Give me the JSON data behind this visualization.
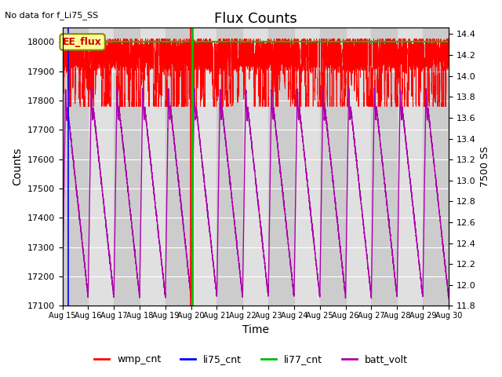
{
  "title": "Flux Counts",
  "top_left_text": "No data for f_Li75_SS",
  "annotation_text": "EE_flux",
  "xlabel": "Time",
  "ylabel_left": "Counts",
  "ylabel_right": "7500 SS",
  "ylim_left": [
    17100,
    18050
  ],
  "ylim_right": [
    11.8,
    14.467
  ],
  "xlim": [
    0,
    15
  ],
  "xtick_labels": [
    "Aug 15",
    "Aug 16",
    "Aug 17",
    "Aug 18",
    "Aug 19",
    "Aug 20",
    "Aug 21",
    "Aug 22",
    "Aug 23",
    "Aug 24",
    "Aug 25",
    "Aug 26",
    "Aug 27",
    "Aug 28",
    "Aug 29",
    "Aug 30"
  ],
  "xtick_positions": [
    0,
    1,
    2,
    3,
    4,
    5,
    6,
    7,
    8,
    9,
    10,
    11,
    12,
    13,
    14,
    15
  ],
  "yticks_left": [
    17100,
    17200,
    17300,
    17400,
    17500,
    17600,
    17700,
    17800,
    17900,
    18000
  ],
  "yticks_right": [
    11.8,
    12.0,
    12.2,
    12.4,
    12.6,
    12.8,
    13.0,
    13.2,
    13.4,
    13.6,
    13.8,
    14.0,
    14.2,
    14.4
  ],
  "bg_band_color": "#cccccc",
  "bg_main_color": "#e0e0e0",
  "legend_items": [
    "wmp_cnt",
    "li75_cnt",
    "li77_cnt",
    "batt_volt"
  ],
  "legend_colors": [
    "#ff0000",
    "#0000ff",
    "#00bb00",
    "#aa00aa"
  ],
  "green_hline_y": 18000,
  "blue_vline_x": 0.22,
  "green_vline_x": 5.05,
  "red_vline_x": 4.97,
  "wmp_cnt_base": 17960,
  "wmp_cnt_noise": 40,
  "batt_min": 17130,
  "batt_max": 17840,
  "batt_notch_depth": 60,
  "figsize": [
    6.4,
    4.8
  ],
  "dpi": 100
}
